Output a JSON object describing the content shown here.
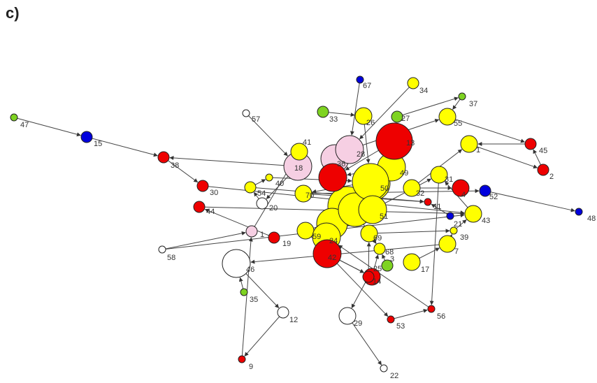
{
  "figure": {
    "panel_label": "c)"
  },
  "colors": {
    "yellow": "#ffff00",
    "red": "#ee0000",
    "pink": "#f6cfe3",
    "white": "#ffffff",
    "green": "#7ed321",
    "blue": "#0000dd",
    "edge": "#444444"
  },
  "nodes": [
    {
      "id": "47",
      "color": "green",
      "size": "s"
    },
    {
      "id": "15",
      "color": "blue",
      "size": "m"
    },
    {
      "id": "38",
      "color": "red",
      "size": "m"
    },
    {
      "id": "57",
      "color": "white",
      "size": "s"
    },
    {
      "id": "30",
      "color": "red",
      "size": "m"
    },
    {
      "id": "44",
      "color": "red",
      "size": "m"
    },
    {
      "id": "40",
      "color": "yellow",
      "size": "s"
    },
    {
      "id": "54",
      "color": "yellow",
      "size": "m"
    },
    {
      "id": "20",
      "color": "white",
      "size": "m"
    },
    {
      "id": "18",
      "color": "pink",
      "size": "xl"
    },
    {
      "id": "41",
      "color": "yellow",
      "size": "l"
    },
    {
      "id": "58",
      "color": "white",
      "size": "s"
    },
    {
      "id": "1",
      "color": "pink",
      "size": "m"
    },
    {
      "id": "19",
      "color": "red",
      "size": "m"
    },
    {
      "id": "46",
      "color": "white",
      "size": "xl"
    },
    {
      "id": "35",
      "color": "green",
      "size": "s"
    },
    {
      "id": "12",
      "color": "white",
      "size": "m"
    },
    {
      "id": "9",
      "color": "red",
      "size": "s"
    },
    {
      "id": "33",
      "color": "green",
      "size": "m"
    },
    {
      "id": "26",
      "color": "yellow",
      "size": "l"
    },
    {
      "id": "67",
      "color": "blue",
      "size": "s"
    },
    {
      "id": "34",
      "color": "yellow",
      "size": "m"
    },
    {
      "id": "27",
      "color": "green",
      "size": "m"
    },
    {
      "id": "37",
      "color": "green",
      "size": "s"
    },
    {
      "id": "55",
      "color": "yellow",
      "size": "l"
    },
    {
      "id": "28",
      "color": "pink",
      "size": "xl"
    },
    {
      "id": "36",
      "color": "red",
      "size": "xl"
    },
    {
      "id": "49",
      "color": "yellow",
      "size": "xl"
    },
    {
      "id": "50",
      "color": "yellow",
      "size": "xxl"
    },
    {
      "id": "70",
      "color": "yellow",
      "size": "l"
    },
    {
      "id": "51",
      "color": "yellow",
      "size": "xl"
    },
    {
      "id": "59",
      "color": "yellow",
      "size": "l"
    },
    {
      "id": "24",
      "color": "yellow",
      "size": "xl"
    },
    {
      "id": "42",
      "color": "red",
      "size": "xl"
    },
    {
      "id": "25",
      "color": "red",
      "size": "l"
    },
    {
      "id": "3",
      "color": "green",
      "size": "m"
    },
    {
      "id": "68",
      "color": "yellow",
      "size": "m"
    },
    {
      "id": "69",
      "color": "yellow",
      "size": "l"
    },
    {
      "id": "14",
      "color": "red",
      "size": "m"
    },
    {
      "id": "29",
      "color": "white",
      "size": "l"
    },
    {
      "id": "22",
      "color": "white",
      "size": "s"
    },
    {
      "id": "53",
      "color": "red",
      "size": "s"
    },
    {
      "id": "56",
      "color": "red",
      "size": "s"
    },
    {
      "id": "17",
      "color": "yellow",
      "size": "l"
    },
    {
      "id": "7",
      "color": "yellow",
      "size": "l"
    },
    {
      "id": "39",
      "color": "yellow",
      "size": "s"
    },
    {
      "id": "43",
      "color": "yellow",
      "size": "l"
    },
    {
      "id": "21",
      "color": "blue",
      "size": "s"
    },
    {
      "id": "11",
      "color": "red",
      "size": "s"
    },
    {
      "id": "32",
      "color": "yellow",
      "size": "l"
    },
    {
      "id": "31",
      "color": "yellow",
      "size": "l"
    },
    {
      "id": "4",
      "color": "red",
      "size": "l"
    },
    {
      "id": "52",
      "color": "blue",
      "size": "m"
    },
    {
      "id": "48",
      "color": "blue",
      "size": "s"
    },
    {
      "id": "1",
      "color": "yellow",
      "size": "l"
    },
    {
      "id": "45",
      "color": "red",
      "size": "m"
    },
    {
      "id": "2",
      "color": "red",
      "size": "m"
    },
    {
      "id": "13",
      "color": "red",
      "size": "xxl"
    }
  ],
  "hubs": [
    {
      "id": "hubA",
      "color": "yellow"
    },
    {
      "id": "hubB",
      "color": "yellow"
    },
    {
      "id": "hubC",
      "color": "yellow"
    },
    {
      "id": "hubD",
      "color": "pink"
    },
    {
      "id": "hubE",
      "color": "yellow"
    }
  ]
}
